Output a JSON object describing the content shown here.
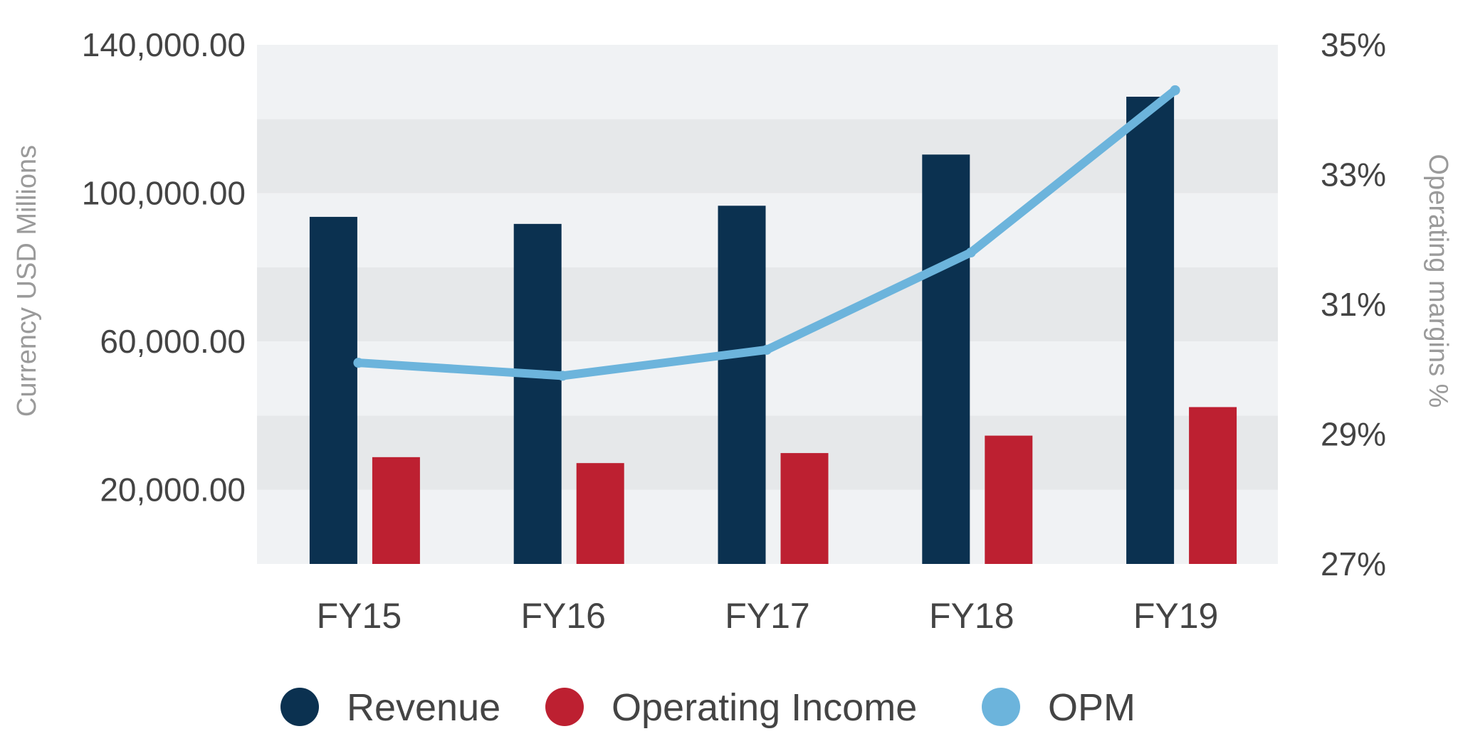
{
  "chart_data": {
    "type": "bar",
    "categories": [
      "FY15",
      "FY16",
      "FY17",
      "FY18",
      "FY19"
    ],
    "series": [
      {
        "name": "Revenue",
        "type": "bar",
        "axis": "left",
        "color": "#0b3150",
        "values": [
          93600,
          91700,
          96600,
          110400,
          126000
        ]
      },
      {
        "name": "Operating Income",
        "type": "bar",
        "axis": "left",
        "color": "#bd2031",
        "values": [
          28800,
          27200,
          29900,
          34600,
          42300
        ]
      },
      {
        "name": "OPM",
        "type": "line",
        "axis": "right",
        "color": "#6cb4dc",
        "values": [
          30.1,
          29.9,
          30.3,
          31.8,
          34.3
        ]
      }
    ],
    "y_left": {
      "label": "Currency USD Millions",
      "range": [
        0,
        140000
      ],
      "ticks": [
        20000,
        60000,
        100000,
        140000
      ],
      "tick_labels": [
        "20,000.00",
        "60,000.00",
        "100,000.00",
        "140,000.00"
      ]
    },
    "y_right": {
      "label": "Operating margins %",
      "range": [
        27,
        35
      ],
      "ticks": [
        27,
        29,
        31,
        33,
        35
      ],
      "tick_labels": [
        "27%",
        "29%",
        "31%",
        "33%",
        "35%"
      ]
    },
    "grid": "alternating horizontal bands",
    "legend_position": "bottom"
  }
}
